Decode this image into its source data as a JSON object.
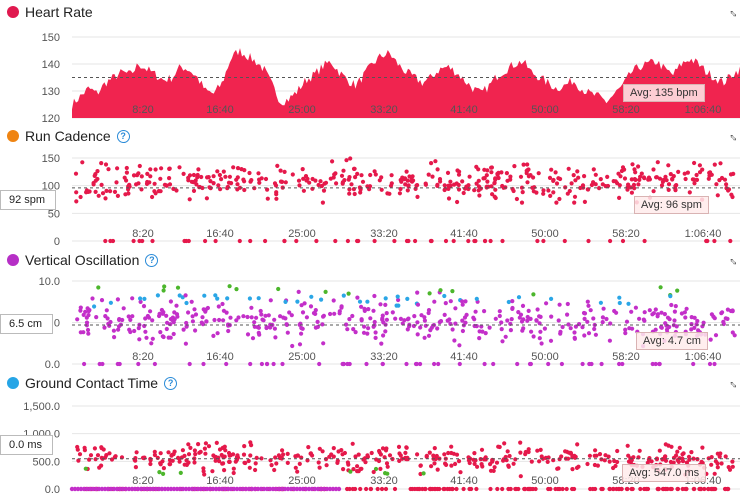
{
  "x_ticks": [
    "8:20",
    "16:40",
    "25:00",
    "33:20",
    "41:40",
    "50:00",
    "58:20",
    "1:06:40"
  ],
  "panels": {
    "hr": {
      "title": "Heart Rate",
      "color": "#e0194f",
      "y_ticks": [
        "150",
        "140",
        "130",
        "120"
      ],
      "avg": "Avg: 135 bpm",
      "left_value": ""
    },
    "cadence": {
      "title": "Run Cadence",
      "color": "#ef8412",
      "y_ticks": [
        "150",
        "100",
        "50",
        "0"
      ],
      "avg": "Avg: 96 spm",
      "left_value": "92 spm"
    },
    "vo": {
      "title": "Vertical Oscillation",
      "color": "#b62fc6",
      "y_ticks": [
        "10.0",
        "5.0",
        "0.0"
      ],
      "avg": "Avg: 4.7 cm",
      "left_value": "6.5 cm"
    },
    "gct": {
      "title": "Ground Contact Time",
      "color": "#26a5e6",
      "y_ticks": [
        "1,500.0",
        "1,000.0",
        "500.0",
        "0.0"
      ],
      "avg": "Avg: 547.0 ms",
      "left_value": "0.0 ms"
    }
  },
  "chart_data": [
    {
      "type": "area",
      "title": "Heart Rate",
      "ylim": [
        120,
        150
      ],
      "avg": 135,
      "xlim_seconds": [
        0,
        4500
      ],
      "series": [
        {
          "values": [
            125,
            128,
            131,
            129,
            133,
            135,
            137,
            136,
            140,
            138,
            136,
            134,
            135,
            139,
            138,
            135,
            130,
            129,
            133,
            142,
            145,
            143,
            141,
            138,
            132,
            126,
            127,
            130,
            134,
            136,
            139,
            141,
            137,
            134,
            132,
            136,
            140,
            143,
            144,
            140,
            137,
            135,
            133,
            135,
            138,
            139,
            137,
            134,
            131,
            129,
            132,
            136,
            138,
            140,
            141,
            137,
            135,
            133,
            131,
            132,
            134,
            131,
            129,
            128,
            126,
            129,
            132,
            137,
            139,
            140,
            141,
            138,
            136,
            140,
            142,
            140,
            137,
            135,
            133,
            136,
            138
          ]
        }
      ]
    },
    {
      "type": "scatter",
      "title": "Run Cadence",
      "ylim": [
        0,
        150
      ],
      "avg": 96
    },
    {
      "type": "scatter",
      "title": "Vertical Oscillation",
      "ylim": [
        0,
        10
      ],
      "avg": 4.7
    },
    {
      "type": "scatter",
      "title": "Ground Contact Time",
      "ylim": [
        0,
        1500
      ],
      "avg": 547
    }
  ]
}
